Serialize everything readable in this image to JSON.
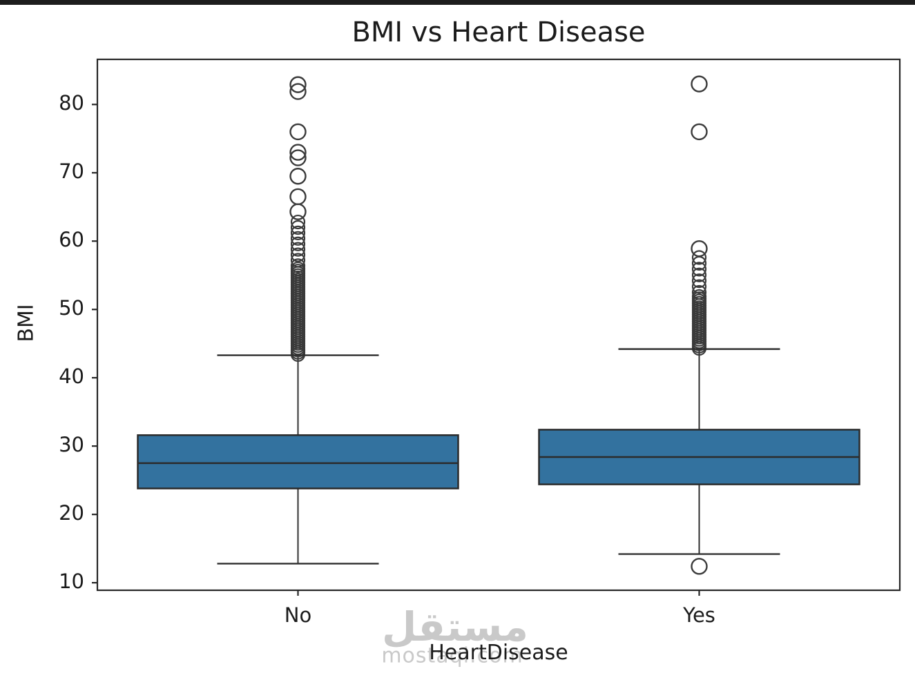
{
  "page": {
    "background": "#FFFFFF",
    "top_bar_color": "#1D1D1D"
  },
  "watermark": {
    "arabic": "مستقل",
    "latin": "mostaql.com",
    "color": "#C9C9C9"
  },
  "chart_data": {
    "type": "boxplot",
    "title": "BMI vs Heart Disease",
    "xlabel": "HeartDisease",
    "ylabel": "BMI",
    "categories": [
      "No",
      "Yes"
    ],
    "yticks": [
      10,
      20,
      30,
      40,
      50,
      60,
      70,
      80
    ],
    "ylim": [
      8.9,
      86.6
    ],
    "grid": false,
    "legend": "none",
    "box_fill": "#33729F",
    "box_edge": "#2B2B2B",
    "whisker_color": "#2F2F2F",
    "outlier_edge": "#3A3A3A",
    "axis_color": "#262626",
    "series": [
      {
        "category": "No",
        "whisker_low": 12.8,
        "q1": 23.8,
        "median": 27.5,
        "q3": 31.6,
        "whisker_high": 43.3,
        "outlier_dense_ranges": [
          {
            "from": 43.4,
            "to": 56.0,
            "step": 0.33
          },
          {
            "from": 56.4,
            "to": 63.5,
            "step": 0.8
          }
        ],
        "outliers_discrete": [
          64.3,
          66.5,
          69.5,
          72.2,
          73.0,
          76.0,
          81.9,
          82.9
        ],
        "outliers_low": []
      },
      {
        "category": "Yes",
        "whisker_low": 14.2,
        "q1": 24.4,
        "median": 28.4,
        "q3": 32.4,
        "whisker_high": 44.2,
        "outlier_dense_ranges": [
          {
            "from": 44.3,
            "to": 52.0,
            "step": 0.33
          },
          {
            "from": 52.5,
            "to": 57.6,
            "step": 0.85
          }
        ],
        "outliers_discrete": [
          58.9,
          76.0,
          83.0
        ],
        "outliers_low": [
          12.4
        ]
      }
    ]
  }
}
